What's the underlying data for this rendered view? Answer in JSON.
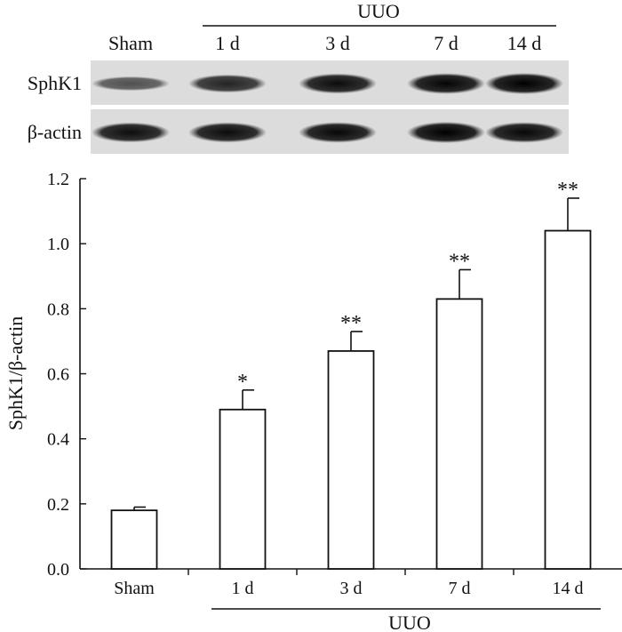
{
  "blot": {
    "group_label": "UUO",
    "lanes": [
      "Sham",
      "1 d",
      "3 d",
      "7 d",
      "14 d"
    ],
    "rows": [
      {
        "label": "SphK1",
        "intensity": [
          0.45,
          0.75,
          0.92,
          0.97,
          1.0
        ]
      },
      {
        "label": "β-actin",
        "intensity": [
          0.9,
          0.92,
          0.95,
          1.0,
          0.95
        ]
      }
    ]
  },
  "chart_data": {
    "type": "bar",
    "categories": [
      "Sham",
      "1 d",
      "3 d",
      "7 d",
      "14 d"
    ],
    "values": [
      0.18,
      0.49,
      0.67,
      0.83,
      1.04
    ],
    "errors": [
      0.01,
      0.06,
      0.06,
      0.09,
      0.1
    ],
    "significance": [
      "",
      "*",
      "**",
      "**",
      "**"
    ],
    "ylabel": "SphK1/β-actin",
    "xlabel": "",
    "group_label": "UUO",
    "ylim": [
      0,
      1.2
    ],
    "yticks": [
      "0.0",
      "0.2",
      "0.4",
      "0.6",
      "0.8",
      "1.0",
      "1.2"
    ],
    "colors": {
      "bar_fill": "#ffffff",
      "stroke": "#111111",
      "band": "#1a1a1a"
    }
  }
}
